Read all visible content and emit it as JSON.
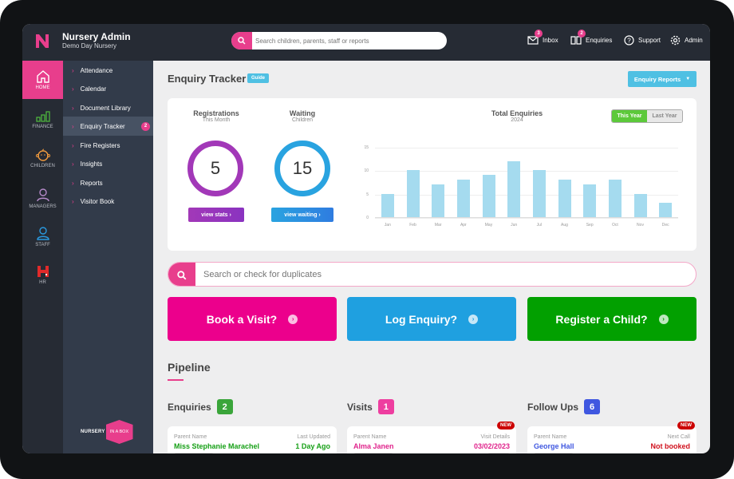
{
  "app": {
    "title": "Nursery Admin",
    "subtitle": "Demo Day Nursery"
  },
  "global_search": {
    "placeholder": "Search children, parents, staff or reports"
  },
  "top_nav": [
    {
      "label": "Inbox",
      "icon": "envelope-icon",
      "badge": "3"
    },
    {
      "label": "Enquiries",
      "icon": "book-icon",
      "badge": "2"
    },
    {
      "label": "Support",
      "icon": "question-circle-icon"
    },
    {
      "label": "Admin",
      "icon": "gear-icon"
    }
  ],
  "rail": [
    {
      "label": "HOME",
      "icon": "home-icon",
      "active": true
    },
    {
      "label": "FINANCE",
      "icon": "bar-chart-icon"
    },
    {
      "label": "CHILDREN",
      "icon": "baby-icon"
    },
    {
      "label": "MANAGERS",
      "icon": "manager-icon"
    },
    {
      "label": "STAFF",
      "icon": "staff-icon"
    },
    {
      "label": "HR",
      "icon": "hr-icon"
    }
  ],
  "subnav": [
    {
      "label": "Attendance"
    },
    {
      "label": "Calendar"
    },
    {
      "label": "Document Library"
    },
    {
      "label": "Enquiry Tracker",
      "active": true,
      "count": "2"
    },
    {
      "label": "Fire Registers"
    },
    {
      "label": "Insights"
    },
    {
      "label": "Reports"
    },
    {
      "label": "Visitor Book"
    }
  ],
  "brand_footer": {
    "left": "NURSERY",
    "right": "IN A BOX"
  },
  "page": {
    "title": "Enquiry Tracker",
    "guide": "Guide",
    "reports_button": "Enquiry Reports"
  },
  "stats": {
    "registrations": {
      "title": "Registrations",
      "subtitle": "This Month",
      "value": "5",
      "button": "view stats",
      "color": "#a238b8"
    },
    "waiting": {
      "title": "Waiting",
      "subtitle": "Children",
      "value": "15",
      "button": "view waiting",
      "color": "#29a3e0"
    }
  },
  "toggle": {
    "this_year": "This Year",
    "last_year": "Last Year"
  },
  "chart_data": {
    "type": "bar",
    "title": "Total Enquiries",
    "subtitle": "2024",
    "categories": [
      "Jan",
      "Feb",
      "Mar",
      "Apr",
      "May",
      "Jun",
      "Jul",
      "Aug",
      "Sep",
      "Oct",
      "Nov",
      "Dec"
    ],
    "values": [
      5,
      10,
      7,
      8,
      9,
      12,
      10,
      8,
      7,
      8,
      5,
      3
    ],
    "yticks": [
      0,
      5,
      10,
      15
    ],
    "ylim": [
      0,
      15
    ],
    "grid": true,
    "bar_color": "#a5dbef",
    "xlabel": "",
    "ylabel": ""
  },
  "duplicate_search": {
    "placeholder": "Search or check for duplicates"
  },
  "actions": [
    {
      "label": "Book a Visit?",
      "color": "#ec008c"
    },
    {
      "label": "Log Enquiry?",
      "color": "#1fa0e0"
    },
    {
      "label": "Register a Child?",
      "color": "#02a000"
    }
  ],
  "pipeline": {
    "title": "Pipeline",
    "columns": [
      {
        "title": "Enquiries",
        "count": "2",
        "color": "#3aa53a",
        "card": {
          "left_label": "Parent Name",
          "right_label": "Last Updated",
          "name": "Miss Stephanie Marachel",
          "value": "1 Day Ago",
          "name_color": "#16a016",
          "value_color": "#16a016",
          "new": ""
        }
      },
      {
        "title": "Visits",
        "count": "1",
        "color": "#ee3ea0",
        "card": {
          "left_label": "Parent Name",
          "right_label": "Visit Details",
          "name": "Alma Janen",
          "value": "03/02/2023",
          "name_color": "#e0248c",
          "value_color": "#e0248c",
          "new": "NEW"
        }
      },
      {
        "title": "Follow Ups",
        "count": "6",
        "color": "#3f57e0",
        "card": {
          "left_label": "Parent Name",
          "right_label": "Next Call",
          "name": "George Hall",
          "value": "Not booked",
          "name_color": "#3f57e0",
          "value_color": "#d0101c",
          "new": "NEW"
        }
      }
    ]
  }
}
